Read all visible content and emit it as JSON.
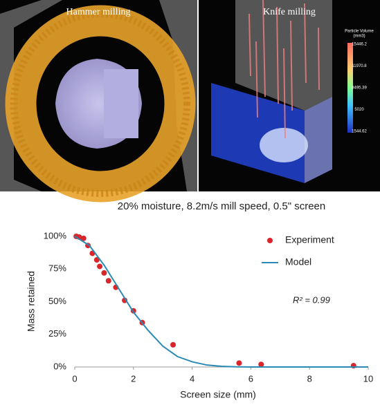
{
  "images": {
    "left_title": "Hammer milling",
    "right_title": "Knife milling",
    "colorbar": {
      "title": [
        "Particle Volume",
        "(mm3)"
      ],
      "labels": [
        "15446.2",
        "11970.8",
        "8495.39",
        "5020",
        "1544.62"
      ]
    }
  },
  "chart_data": {
    "type": "scatter",
    "title": "20% moisture, 8.2m/s mill speed, 0.5\" screen",
    "x_label": "Screen size (mm)",
    "y_label": "Mass retained",
    "xlim": [
      0,
      10
    ],
    "xticks": [
      0,
      2,
      4,
      6,
      8,
      10
    ],
    "ylim": [
      0,
      100
    ],
    "yticks": [
      {
        "value": 0,
        "label": "0%"
      },
      {
        "value": 25,
        "label": "25%"
      },
      {
        "value": 50,
        "label": "50%"
      },
      {
        "value": 75,
        "label": "75%"
      },
      {
        "value": 100,
        "label": "100%"
      }
    ],
    "grid": false,
    "legend": "upper right",
    "annotation": "R² = 0.99",
    "series": [
      {
        "name": "Experiment",
        "mode": "markers",
        "color": "#d9262b",
        "x": [
          0.05,
          0.15,
          0.3,
          0.45,
          0.6,
          0.75,
          0.85,
          1.0,
          1.15,
          1.4,
          1.7,
          2.0,
          2.3,
          3.35,
          5.6,
          6.35,
          9.5
        ],
        "values": [
          100,
          99.5,
          98.5,
          93,
          87,
          82,
          77,
          72,
          66,
          61,
          51,
          43,
          34,
          17,
          3,
          2,
          1
        ]
      },
      {
        "name": "Model",
        "mode": "line",
        "color": "#2a8ab3",
        "x": [
          0,
          0.5,
          1,
          1.5,
          2,
          2.5,
          3,
          3.5,
          4,
          4.5,
          5,
          5.5,
          6,
          7,
          8,
          9,
          10
        ],
        "values": [
          100,
          93,
          78,
          60,
          42,
          28,
          16,
          8,
          4,
          1.5,
          0.5,
          0.1,
          0,
          0,
          0,
          0,
          0
        ]
      }
    ]
  }
}
